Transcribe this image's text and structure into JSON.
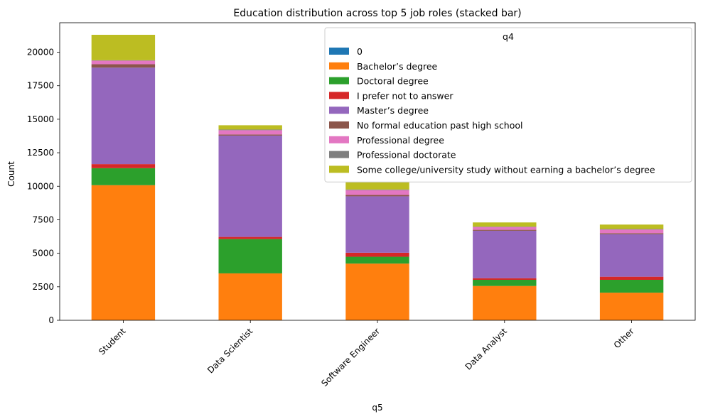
{
  "chart_data": {
    "type": "bar",
    "stacked": true,
    "title": "Education distribution across top 5 job roles (stacked bar)",
    "xlabel": "q5",
    "ylabel": "Count",
    "ylim": [
      0,
      22200
    ],
    "yticks": [
      0,
      2500,
      5000,
      7500,
      10000,
      12500,
      15000,
      17500,
      20000
    ],
    "categories": [
      "Student",
      "Data Scientist",
      "Software Engineer",
      "Data Analyst",
      "Other"
    ],
    "legend_title": "q4",
    "legend_position": "top-right",
    "grid": false,
    "series": [
      {
        "name": "0",
        "color": "#1f77b4",
        "values": [
          0,
          0,
          0,
          0,
          0
        ]
      },
      {
        "name": "Bachelor’s degree",
        "color": "#ff7f0e",
        "values": [
          10080,
          3500,
          4230,
          2560,
          2060
        ]
      },
      {
        "name": "Doctoral degree",
        "color": "#2ca02c",
        "values": [
          1270,
          2560,
          510,
          460,
          960
        ]
      },
      {
        "name": "I prefer not to answer",
        "color": "#d62728",
        "values": [
          300,
          160,
          300,
          120,
          230
        ]
      },
      {
        "name": "Master’s degree",
        "color": "#9467bd",
        "values": [
          7200,
          7560,
          4210,
          3540,
          3170
        ]
      },
      {
        "name": "No formal education past high school",
        "color": "#8c564b",
        "values": [
          250,
          80,
          100,
          70,
          80
        ]
      },
      {
        "name": "Professional degree",
        "color": "#e377c2",
        "values": [
          270,
          320,
          360,
          210,
          270
        ]
      },
      {
        "name": "Professional doctorate",
        "color": "#7f7f7f",
        "values": [
          30,
          50,
          50,
          30,
          40
        ]
      },
      {
        "name": "Some college/university study without earning a bachelor’s degree",
        "color": "#bcbd22",
        "values": [
          1900,
          320,
          540,
          310,
          330
        ]
      }
    ]
  }
}
